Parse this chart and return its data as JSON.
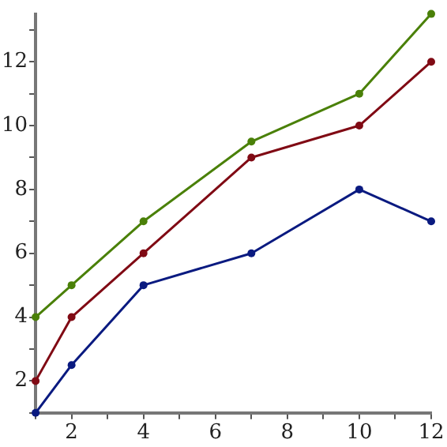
{
  "chart_data": {
    "type": "line",
    "x": [
      1,
      2,
      4,
      7,
      10,
      12
    ],
    "series": [
      {
        "color": "#0a1a80",
        "values": [
          1,
          2.5,
          5,
          6,
          8,
          7
        ]
      },
      {
        "color": "#800a14",
        "values": [
          2,
          4,
          6,
          9,
          10,
          12
        ]
      },
      {
        "color": "#4a8008",
        "values": [
          4,
          5,
          7,
          9.5,
          11,
          13.5
        ]
      }
    ],
    "xlim": [
      1,
      12
    ],
    "ylim": [
      1,
      13.5
    ],
    "xticks": [
      {
        "value": 1,
        "label": null
      },
      2,
      {
        "value": 3,
        "label": null
      },
      4,
      {
        "value": 5,
        "label": null
      },
      6,
      {
        "value": 7,
        "label": null
      },
      8,
      {
        "value": 9,
        "label": null
      },
      10,
      {
        "value": 11,
        "label": null
      },
      12
    ],
    "yticks": [
      {
        "value": 1,
        "label": null
      },
      2,
      {
        "value": 3,
        "label": null
      },
      4,
      {
        "value": 5,
        "label": null
      },
      6,
      {
        "value": 7,
        "label": null
      },
      8,
      {
        "value": 9,
        "label": null
      },
      10,
      {
        "value": 11,
        "label": null
      },
      12,
      {
        "value": 13,
        "label": null
      }
    ],
    "marker": "circle",
    "grid": false,
    "legend": false
  }
}
